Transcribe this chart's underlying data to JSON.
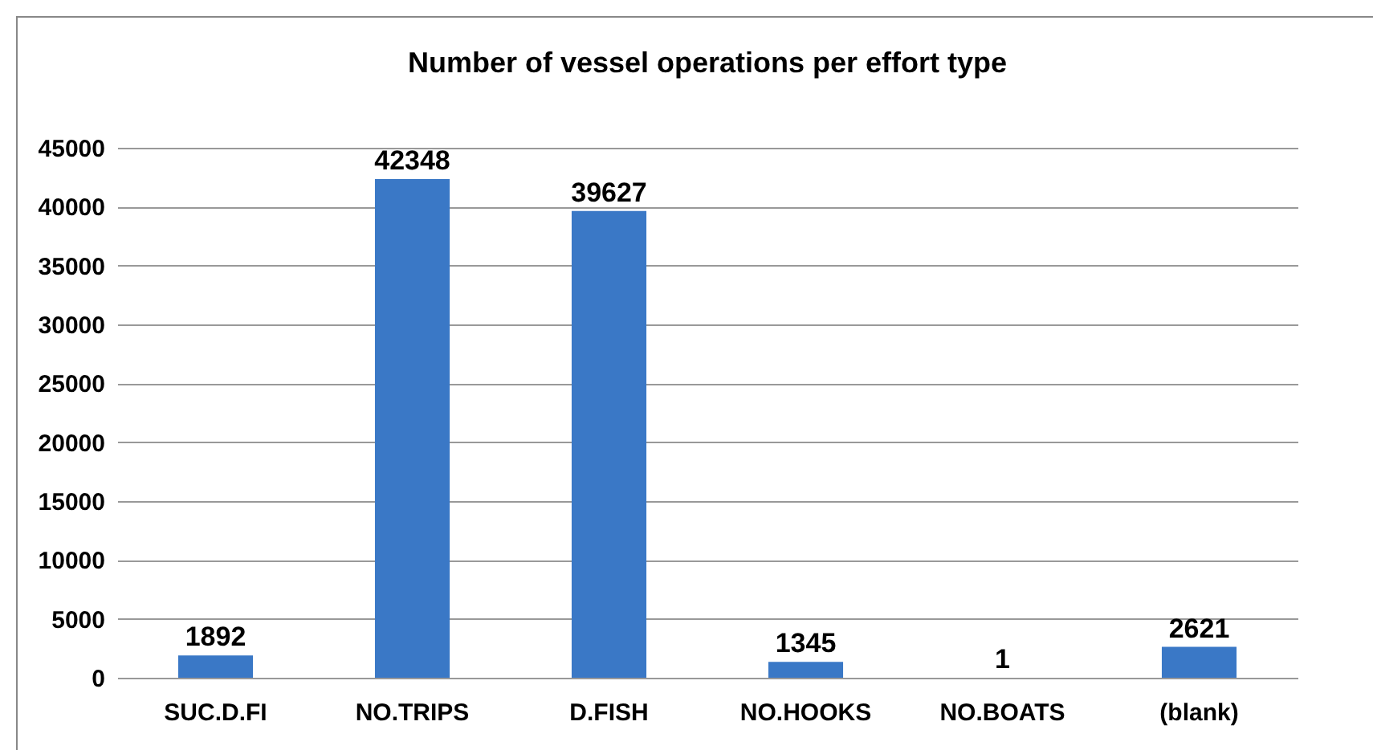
{
  "chart_data": {
    "type": "bar",
    "title": "Number of vessel operations per effort type",
    "categories": [
      "SUC.D.FI",
      "NO.TRIPS",
      "D.FISH",
      "NO.HOOKS",
      "NO.BOATS",
      "(blank)"
    ],
    "values": [
      1892,
      42348,
      39627,
      1345,
      1,
      2621
    ],
    "color": "#3a78c6",
    "ylim": [
      0,
      45000
    ],
    "yticks": [
      0,
      5000,
      10000,
      15000,
      20000,
      25000,
      30000,
      35000,
      40000,
      45000
    ],
    "grid": "y",
    "data_labels": true
  }
}
